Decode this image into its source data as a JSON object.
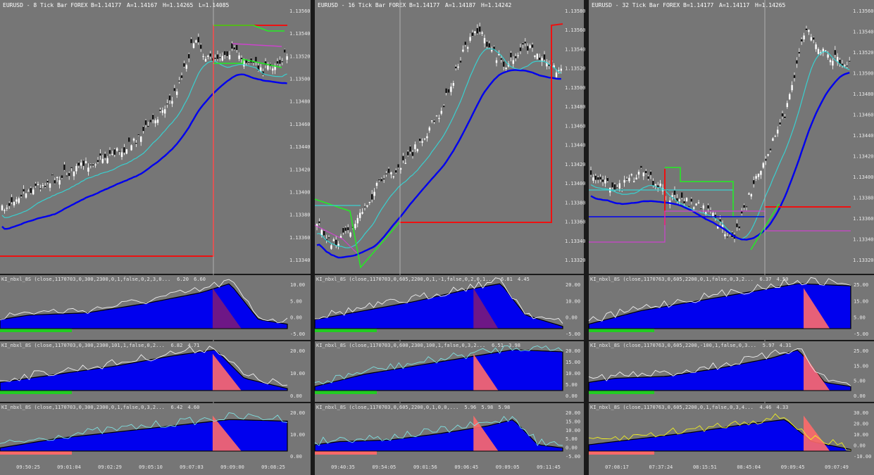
{
  "colors": {
    "chart_bg": "#767676",
    "separator": "#1a1a1a",
    "candle": "#ffffff",
    "ma_fast": "#39d0d0",
    "ma_slow": "#0000ee",
    "stop": "#ee1111",
    "green_level": "#22ee22",
    "magenta_level": "#cc44cc",
    "hist_blue": "#0000ee",
    "hist_purple": "#7a1a7a",
    "hist_salmon": "#ff6a6a",
    "hist_green": "#22cc22",
    "hist_lightblue": "#5f7fe0",
    "osc_white": "#eeeeee",
    "osc_cyan": "#7fe0e0",
    "osc_green": "#66dd44",
    "osc_yellow": "#eeee22",
    "osc_black": "#000000"
  },
  "chart_data": [
    {
      "type": "line",
      "title": "EURUSD - 8 Tick Bar FOREX",
      "header_values": [
        "B=1.14177",
        "A=1.14167",
        "H=1.14265",
        "L=1.14085"
      ],
      "y_ticks": [
        "1.13560",
        "1.13540",
        "1.13520",
        "1.13500",
        "1.13480",
        "1.13460",
        "1.13440",
        "1.13420",
        "1.13400",
        "1.13380",
        "1.13360",
        "1.13340"
      ],
      "x_labels": [
        "09:50:25",
        "09:01:04",
        "09:02:29",
        "09:05:10",
        "09:07:03",
        "09:09:00",
        "09:08:25"
      ],
      "indicators": [
        {
          "label": "KI_nbxl_8S (close,1170703,0,300,2300,0,1,false,0,2,3,0...",
          "values": [
            "6.20",
            "6.60"
          ],
          "y_ticks": [
            "10.00",
            "5.00",
            "0.00",
            "-5.00"
          ]
        },
        {
          "label": "KI_nbxl_8S (close,1170703,0,300,2300,101,1,false,0,2...",
          "values": [
            "6.82",
            "4.71"
          ],
          "y_ticks": [
            "20.00",
            "10.00",
            "0.00"
          ]
        },
        {
          "label": "KI_nbxl_8S (close,1170703,0,300,2300,0,1,false,0,3,2...",
          "values": [
            "6.42",
            "4.60"
          ],
          "y_ticks": [
            "20.00",
            "10.00",
            "0.00"
          ]
        }
      ]
    },
    {
      "type": "line",
      "title": "EURUSD - 16 Tick Bar FOREX",
      "header_values": [
        "B=1.14177",
        "A=1.14187",
        "H=1.14242"
      ],
      "y_ticks": [
        "1.13580",
        "1.13560",
        "1.13540",
        "1.13520",
        "1.13500",
        "1.13480",
        "1.13460",
        "1.13440",
        "1.13420",
        "1.13400",
        "1.13380",
        "1.13360",
        "1.13340",
        "1.13320"
      ],
      "x_labels": [
        "09:40:35",
        "09:54:05",
        "09:01:56",
        "09:06:45",
        "09:09:05",
        "09:11:45"
      ],
      "indicators": [
        {
          "label": "KI_nbxl_8S (close,1170703,0,605,2200,0,1,-1,false,0,2,0,1...",
          "values": [
            "6.81",
            "4.45"
          ],
          "y_ticks": [
            "20.00",
            "10.00",
            "0.00",
            "-5.00"
          ]
        },
        {
          "label": "KI_nbxl_8S (close,1170703,0,600,2300,100,1,false,0,3,2...",
          "values": [
            "6.51",
            "3.98"
          ],
          "y_ticks": [
            "20.00",
            "15.00",
            "10.00",
            "5.00",
            "0.00"
          ]
        },
        {
          "label": "KI_nbxl_8S (close,1170703,0,605,2200,0,1,0,0,...",
          "values": [
            "5.96",
            "5.98",
            "5.98"
          ],
          "y_ticks": [
            "20.00",
            "15.00",
            "10.00",
            "5.00",
            "0.00",
            "-5.00"
          ]
        }
      ]
    },
    {
      "type": "line",
      "title": "EURUSD - 32 Tick Bar FOREX",
      "header_values": [
        "B=1.14177",
        "A=1.14117",
        "H=1.14265"
      ],
      "y_ticks": [
        "1.13560",
        "1.13540",
        "1.13520",
        "1.13500",
        "1.13480",
        "1.13460",
        "1.13440",
        "1.13420",
        "1.13400",
        "1.13380",
        "1.13360",
        "1.13340",
        "1.13320"
      ],
      "x_labels": [
        "07:08:17",
        "07:37:24",
        "08:15:51",
        "08:45:04",
        "09:09:45",
        "09:07:49"
      ],
      "indicators": [
        {
          "label": "KI_nbxl_8S (close,1170763,0,605,2200,0,1,false,0,3,2...",
          "values": [
            "6.37",
            "4.50"
          ],
          "y_ticks": [
            "25.00",
            "15.00",
            "5.00",
            "-5.00"
          ]
        },
        {
          "label": "KI_nbxl_8S (close,1170763,0,605,2200,-100,1,false,0,3...",
          "values": [
            "5.97",
            "4.31"
          ],
          "y_ticks": [
            "25.00",
            "15.00",
            "5.00",
            "0.00"
          ]
        },
        {
          "label": "KI_nbxl_8S (close,1170763,0,605,2200,0,1,false,0,3,4...",
          "values": [
            "4.46",
            "4.33"
          ],
          "y_ticks": [
            "30.00",
            "20.00",
            "10.00",
            "0.00",
            "-10.00"
          ]
        }
      ]
    }
  ]
}
